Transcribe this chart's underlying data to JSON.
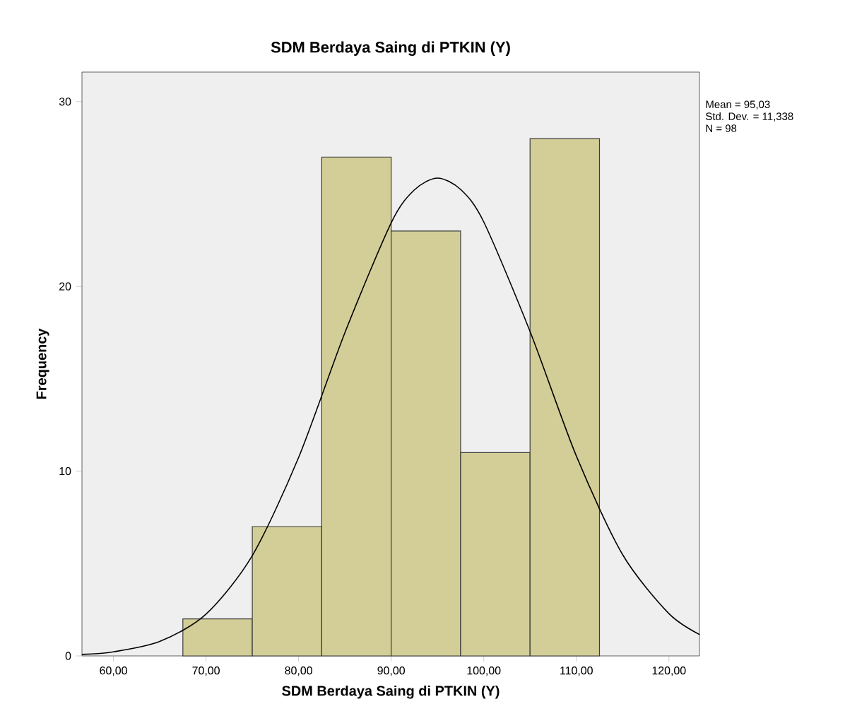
{
  "chart_data": {
    "type": "histogram",
    "title": "SDM Berdaya Saing di PTKIN (Y)",
    "xlabel": "SDM Berdaya Saing di PTKIN (Y)",
    "ylabel": "Frequency",
    "series": [
      {
        "color": "#d3ce97",
        "bins": [
          67.5,
          75,
          82.5,
          90,
          97.5,
          105,
          112.5
        ],
        "values": [
          2,
          7,
          27,
          23,
          11,
          28
        ]
      },
      {
        "type": "line",
        "color": "#000000",
        "x": [
          56.6,
          60,
          65,
          70,
          75,
          80,
          85,
          90,
          92.5,
          95,
          97.5,
          100,
          105,
          110,
          115,
          120,
          123.3
        ],
        "values": [
          0.08,
          0.22,
          0.78,
          2.26,
          5.43,
          10.74,
          17.49,
          23.44,
          25.22,
          25.86,
          25.25,
          23.49,
          17.56,
          10.82,
          5.48,
          2.29,
          1.16
        ]
      }
    ],
    "xlim": [
      56.6,
      123.3
    ],
    "ylim": [
      0,
      31.6
    ],
    "xticks": [
      {
        "value": 60,
        "label": "60,00"
      },
      {
        "value": 70,
        "label": "70,00"
      },
      {
        "value": 80,
        "label": "80,00"
      },
      {
        "value": 90,
        "label": "90,00"
      },
      {
        "value": 100,
        "label": "100,00"
      },
      {
        "value": 110,
        "label": "110,00"
      },
      {
        "value": 120,
        "label": "120,00"
      }
    ],
    "yticks": [
      0,
      10,
      20,
      30
    ],
    "marker": "none",
    "line_style": "solid",
    "annotations": [
      "Mean = 95,03",
      "Std. Dev. = 11,338",
      "N = 98"
    ]
  }
}
